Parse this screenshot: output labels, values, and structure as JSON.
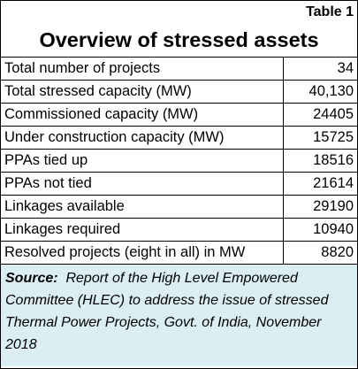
{
  "table": {
    "label": "Table 1",
    "title": "Overview of stressed assets",
    "rows": [
      [
        "Total number of projects",
        "34"
      ],
      [
        "Total stressed capacity (MW)",
        "40,130"
      ],
      [
        "Commissioned capacity (MW)",
        "24405"
      ],
      [
        "Under construction capacity (MW)",
        "15725"
      ],
      [
        "PPAs tied up",
        "18516"
      ],
      [
        "PPAs not tied",
        "21614"
      ],
      [
        "Linkages available",
        "29190"
      ],
      [
        "Linkages required",
        "10940"
      ],
      [
        "Resolved projects (eight in all) in MW",
        "8820"
      ]
    ],
    "source_label": "Source:",
    "source_text": "Report of the High Level Empowered Committee (HLEC) to address the issue of stressed Thermal Power Projects, Govt. of India, November 2018"
  }
}
